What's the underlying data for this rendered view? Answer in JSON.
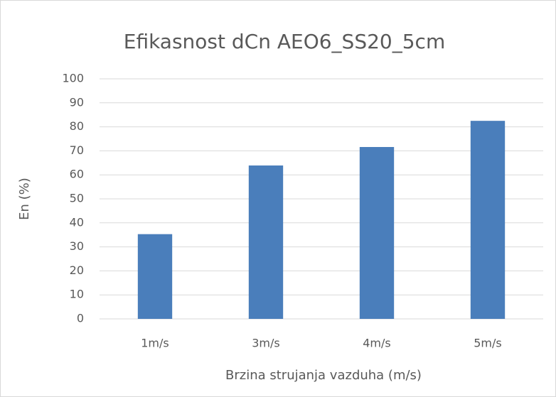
{
  "chart_data": {
    "type": "bar",
    "title": "Efikasnost dCn AEO6_SS20_5cm",
    "x_label": "Brzina strujanja vazduha (m/s)",
    "y_label": "En (%)",
    "categories": [
      "1m/s",
      "3m/s",
      "4m/s",
      "5m/s"
    ],
    "values": [
      35.3,
      63.9,
      71.6,
      82.5
    ],
    "color": "#4a7ebb",
    "ylim": [
      0,
      100
    ],
    "yticks": [
      0,
      10,
      20,
      30,
      40,
      50,
      60,
      70,
      80,
      90,
      100
    ],
    "grid": true
  }
}
